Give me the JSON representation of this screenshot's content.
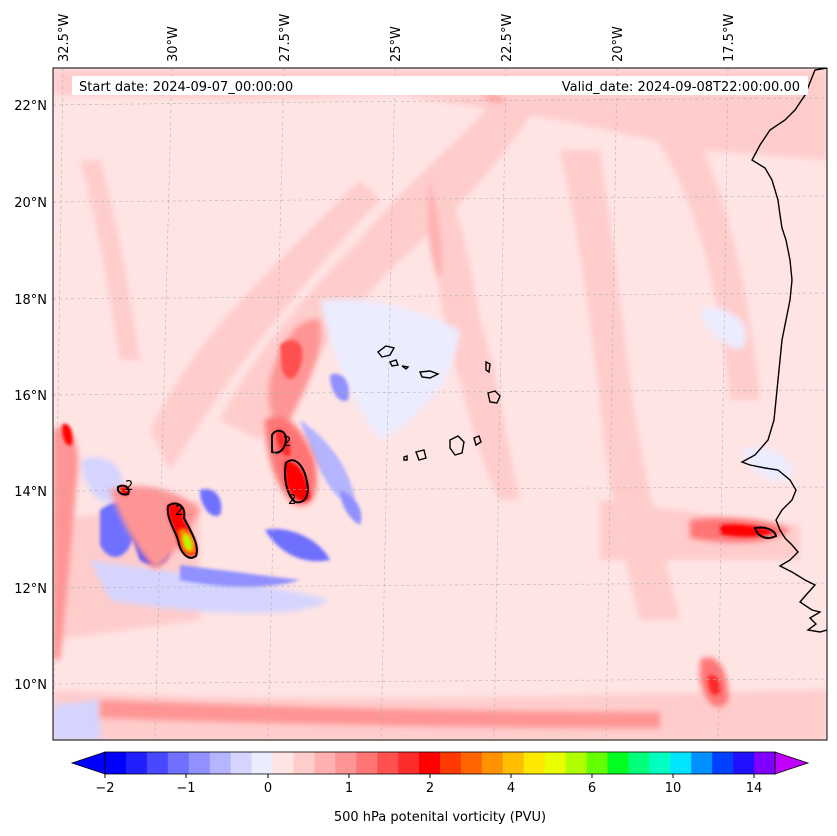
{
  "map": {
    "start_date": "Start date: 2024-09-07_00:00:00",
    "valid_date": "Valid_date: 2024-09-08T22:00:00.00",
    "lat_labels": [
      "22°N",
      "20°N",
      "18°N",
      "16°N",
      "14°N",
      "12°N",
      "10°N"
    ],
    "lon_labels": [
      "32.5°W",
      "30°W",
      "27.5°W",
      "25°W",
      "22.5°W",
      "20°W",
      "17.5°W"
    ],
    "contour_label": "2",
    "colors": {
      "land_outline": "#000000",
      "gridline": "#b0b0b0",
      "background_field": "#ffe4e4"
    }
  },
  "colorbar": {
    "label": "500 hPa potenital vorticity (PVU)",
    "tick_labels": [
      "−2",
      "−1",
      "0",
      "1",
      "2",
      "4",
      "6",
      "10",
      "14"
    ],
    "colors": [
      "#0000ff",
      "#2020ff",
      "#4848ff",
      "#7070ff",
      "#9090ff",
      "#b4b4ff",
      "#d4d4ff",
      "#ececff",
      "#ffe4e4",
      "#ffcccc",
      "#ffb0b0",
      "#ff9494",
      "#ff7474",
      "#ff5050",
      "#ff2c2c",
      "#ff0000",
      "#ff3a00",
      "#ff6400",
      "#ff9200",
      "#ffbe00",
      "#ffe800",
      "#e8ff00",
      "#b0ff00",
      "#64ff00",
      "#00ff20",
      "#00ff7a",
      "#00ffc0",
      "#00e4ff",
      "#0090ff",
      "#0040ff",
      "#2010ff",
      "#8000ff"
    ],
    "under_color": "#0000ff",
    "over_color": "#c000ff"
  }
}
